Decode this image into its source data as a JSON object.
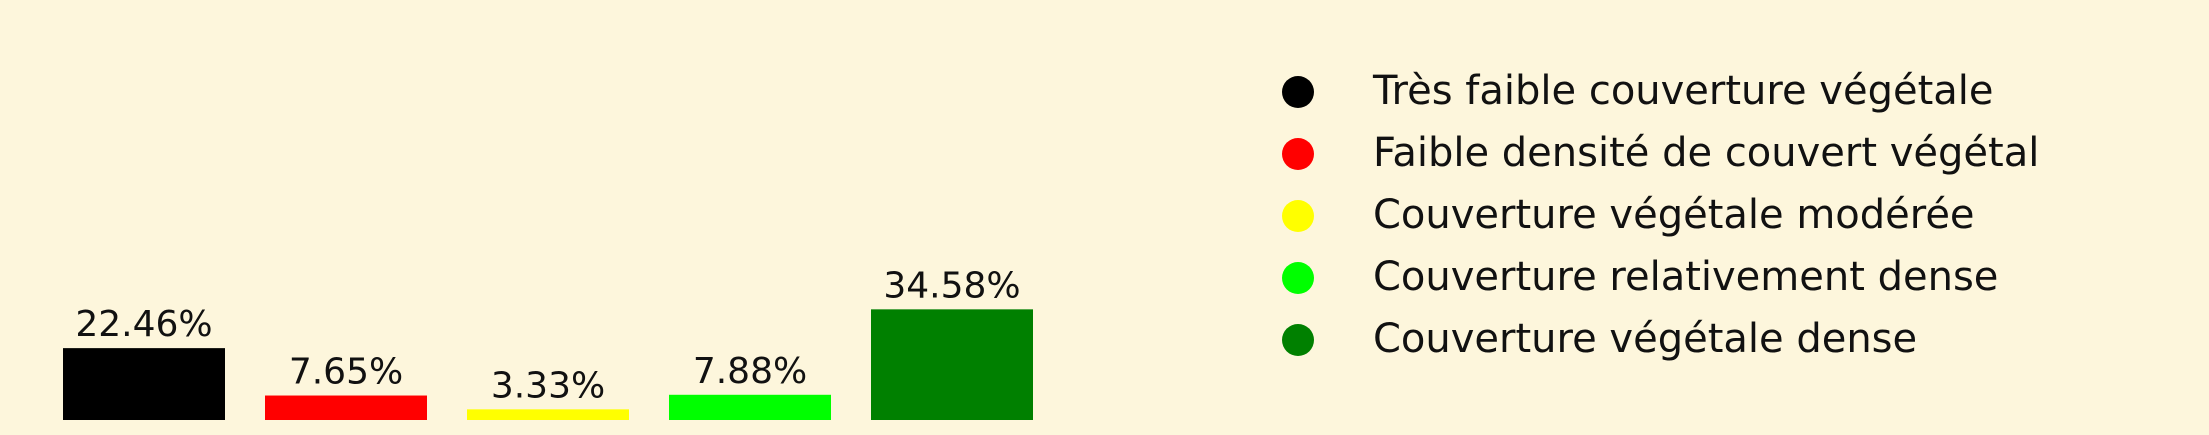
{
  "chart_data": {
    "type": "bar",
    "categories": [
      "Très faible couverture végétale",
      "Faible densité de couvert végétal",
      "Couverture végétale modérée",
      "Couverture relativement dense",
      "Couverture végétale dense"
    ],
    "values": [
      22.46,
      7.65,
      3.33,
      7.88,
      34.58
    ],
    "value_labels": [
      "22.46%",
      "7.65%",
      "3.33%",
      "7.88%",
      "34.58%"
    ],
    "colors": [
      "#000000",
      "#ff0000",
      "#ffff00",
      "#00ff00",
      "#008000"
    ],
    "title": "",
    "xlabel": "",
    "ylabel": "",
    "ylim": [
      0,
      105
    ],
    "grid": false,
    "axes_visible": false,
    "legend": {
      "placement": "right",
      "marker": "circle",
      "entries": [
        "Très faible couverture végétale",
        "Faible densité de couvert végétal",
        "Couverture végétale modérée",
        "Couverture relativement dense",
        "Couverture végétale dense"
      ]
    },
    "background_color": "#fdf6dc"
  }
}
